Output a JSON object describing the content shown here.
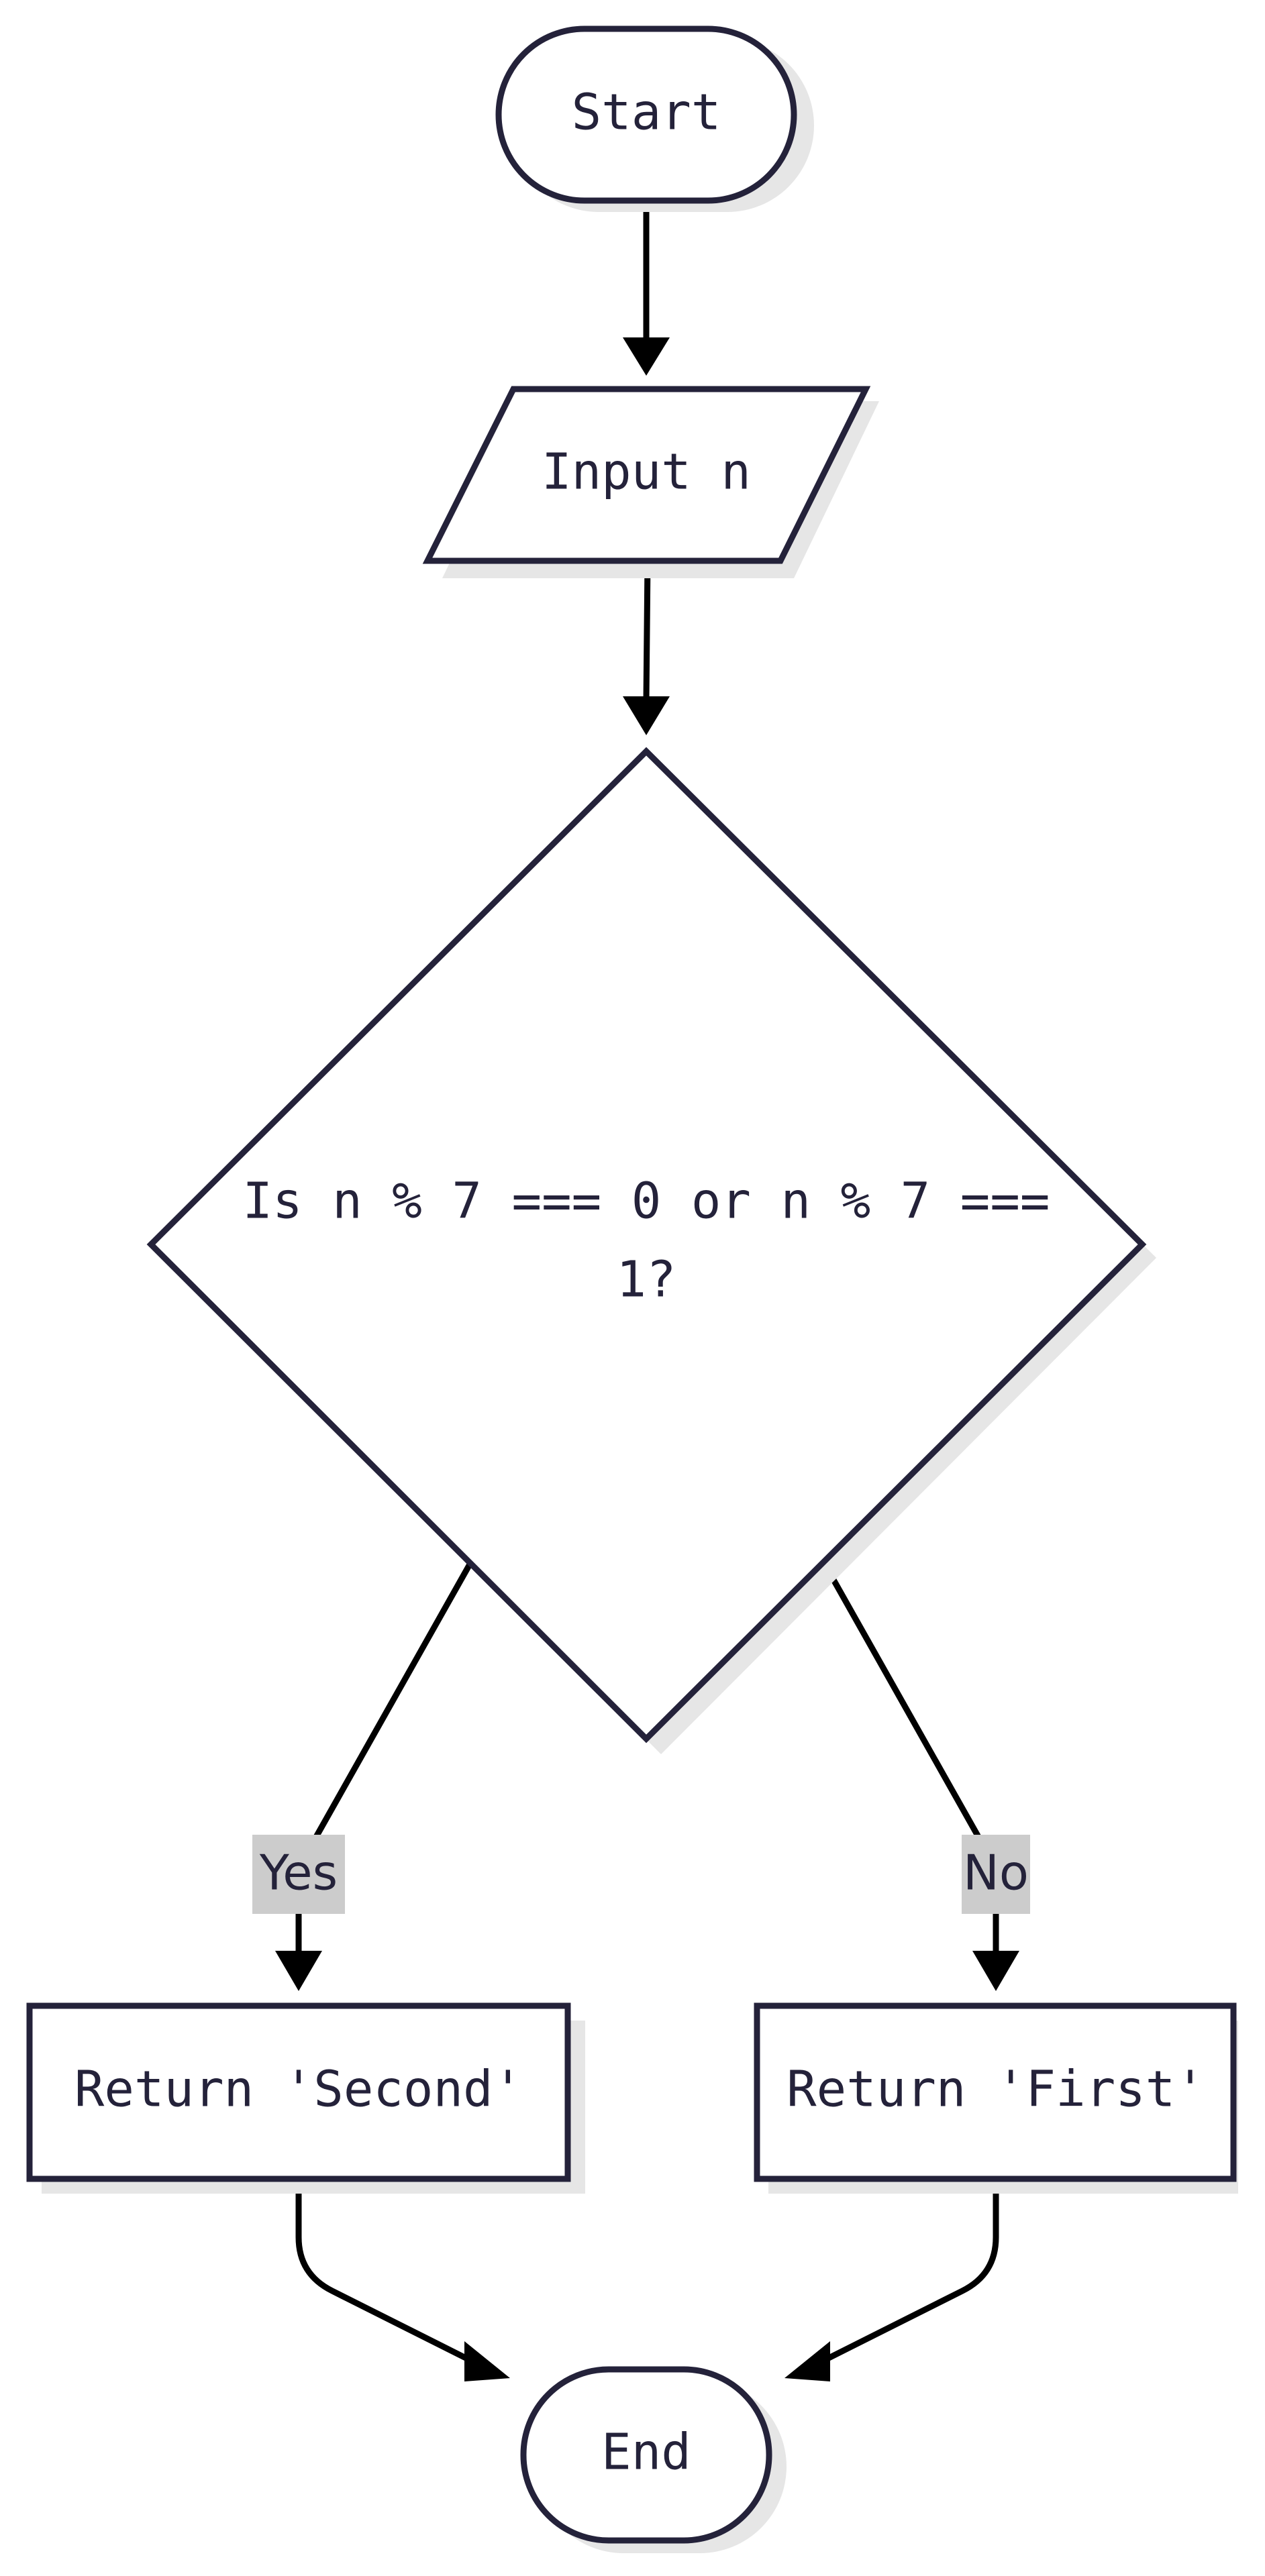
{
  "nodes": {
    "start": {
      "label": "Start"
    },
    "input": {
      "label": "Input n"
    },
    "decision": {
      "line1": "Is n % 7 === 0 or n % 7 ===",
      "line2": "1?"
    },
    "return_second": {
      "label": "Return 'Second'"
    },
    "return_first": {
      "label": "Return 'First'"
    },
    "end": {
      "label": "End"
    }
  },
  "edges": {
    "yes_label": "Yes",
    "no_label": "No"
  },
  "colors": {
    "node_stroke": "#24223a",
    "node_fill": "#ffffff",
    "shadow": "#e6e6e6",
    "edge": "#000000",
    "edge_label_bg": "#cccccc",
    "text": "#24223a"
  }
}
